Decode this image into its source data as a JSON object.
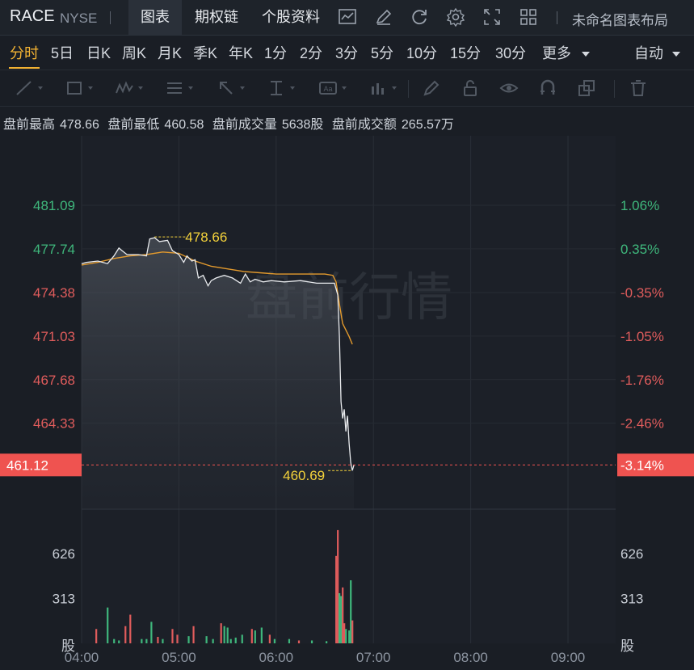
{
  "header": {
    "symbol": "RACE",
    "exchange": "NYSE",
    "tabs": [
      {
        "label": "图表",
        "active": true
      },
      {
        "label": "期权链",
        "active": false
      },
      {
        "label": "个股资料",
        "active": false
      }
    ],
    "layout_label": "未命名图表布局",
    "icons": [
      "indicator-icon",
      "draw-icon",
      "refresh-icon",
      "settings-icon",
      "fullscreen-icon",
      "layout-grid-icon"
    ]
  },
  "periods": {
    "items": [
      "分时",
      "5日",
      "日K",
      "周K",
      "月K",
      "季K",
      "年K",
      "1分",
      "2分",
      "3分",
      "5分",
      "10分",
      "15分",
      "30分",
      "更多"
    ],
    "active": "分时",
    "auto_label": "自动"
  },
  "toolbar": {
    "tools": [
      "line-tool-icon",
      "rectangle-tool-icon",
      "wave-tool-icon",
      "fib-tool-icon",
      "arrow-tool-icon",
      "measure-tool-icon",
      "text-tool-icon",
      "bar-pattern-icon",
      "brush-icon",
      "lock-icon",
      "eye-icon",
      "magnet-icon",
      "clone-icon",
      "trash-icon"
    ]
  },
  "stats": {
    "high_label": "盘前最高",
    "high_value": "478.66",
    "low_label": "盘前最低",
    "low_value": "460.58",
    "volume_label": "盘前成交量",
    "volume_value": "5638股",
    "amount_label": "盘前成交额",
    "amount_value": "265.57万"
  },
  "colors": {
    "up": "#3fb77c",
    "down": "#e05c5c",
    "avg_line": "#e39a2d",
    "price_line": "#e8eaed",
    "current_tag": "#ef5350",
    "marker_text": "#f5d33b"
  },
  "chart_data": {
    "type": "line",
    "title": "盘前行情",
    "x_ticks": [
      "04:00",
      "05:00",
      "06:00",
      "07:00",
      "08:00",
      "09:00"
    ],
    "price_ticks": [
      "481.09",
      "477.74",
      "474.38",
      "471.03",
      "467.68",
      "464.33"
    ],
    "pct_ticks": [
      "1.06%",
      "0.35%",
      "-0.35%",
      "-1.05%",
      "-1.76%",
      "-2.46%"
    ],
    "volume_ticks": [
      "626",
      "313"
    ],
    "volume_unit": "股",
    "current_price": "461.12",
    "current_pct": "-3.14%",
    "high_marker": "478.66",
    "low_marker": "460.69",
    "price_range": [
      459.8,
      482.3
    ],
    "volume_range": [
      0,
      780
    ],
    "price_series": [
      [
        "04:00",
        476.6
      ],
      [
        "04:03",
        476.7
      ],
      [
        "04:10",
        476.8
      ],
      [
        "04:16",
        476.6
      ],
      [
        "04:20",
        477.2
      ],
      [
        "04:23",
        477.8
      ],
      [
        "04:25",
        477.6
      ],
      [
        "04:28",
        477.3
      ],
      [
        "04:35",
        477.3
      ],
      [
        "04:40",
        477.2
      ],
      [
        "04:42",
        478.5
      ],
      [
        "04:45",
        478.6
      ],
      [
        "04:48",
        478.3
      ],
      [
        "04:53",
        478.4
      ],
      [
        "04:56",
        477.6
      ],
      [
        "05:00",
        477.3
      ],
      [
        "05:03",
        476.7
      ],
      [
        "05:05",
        477.2
      ],
      [
        "05:08",
        476.8
      ],
      [
        "05:10",
        476.9
      ],
      [
        "05:12",
        475.5
      ],
      [
        "05:15",
        475.7
      ],
      [
        "05:18",
        474.9
      ],
      [
        "05:20",
        475.3
      ],
      [
        "05:23",
        475.5
      ],
      [
        "05:28",
        475.7
      ],
      [
        "05:33",
        475.5
      ],
      [
        "05:38",
        475.1
      ],
      [
        "05:41",
        475.8
      ],
      [
        "05:44",
        475.2
      ],
      [
        "05:47",
        475.4
      ],
      [
        "05:52",
        475.2
      ],
      [
        "05:57",
        475.3
      ],
      [
        "06:05",
        475.2
      ],
      [
        "06:15",
        475.3
      ],
      [
        "06:25",
        475.1
      ],
      [
        "06:32",
        475.1
      ],
      [
        "06:36",
        475.1
      ],
      [
        "06:38",
        474.2
      ],
      [
        "06:39",
        471.0
      ],
      [
        "06:40",
        466.0
      ],
      [
        "06:41",
        464.7
      ],
      [
        "06:42",
        465.4
      ],
      [
        "06:43",
        463.7
      ],
      [
        "06:44",
        464.9
      ],
      [
        "06:45",
        462.8
      ],
      [
        "06:46",
        461.3
      ],
      [
        "06:47",
        460.69
      ],
      [
        "06:48",
        461.12
      ]
    ],
    "avg_series": [
      [
        "04:00",
        476.5
      ],
      [
        "04:10",
        476.7
      ],
      [
        "04:20",
        477.0
      ],
      [
        "04:30",
        477.2
      ],
      [
        "04:40",
        477.3
      ],
      [
        "04:50",
        477.5
      ],
      [
        "05:00",
        477.4
      ],
      [
        "05:10",
        476.8
      ],
      [
        "05:20",
        476.4
      ],
      [
        "05:30",
        476.2
      ],
      [
        "05:40",
        476.0
      ],
      [
        "05:50",
        475.9
      ],
      [
        "06:00",
        475.8
      ],
      [
        "06:10",
        475.8
      ],
      [
        "06:20",
        475.8
      ],
      [
        "06:30",
        475.8
      ],
      [
        "06:35",
        475.7
      ],
      [
        "06:37",
        475.2
      ],
      [
        "06:39",
        473.5
      ],
      [
        "06:41",
        472.0
      ],
      [
        "06:43",
        471.5
      ],
      [
        "06:45",
        471.0
      ],
      [
        "06:47",
        470.4
      ]
    ],
    "volume_series": [
      [
        "04:09",
        100,
        "down"
      ],
      [
        "04:16",
        250,
        "up"
      ],
      [
        "04:20",
        30,
        "up"
      ],
      [
        "04:23",
        20,
        "up"
      ],
      [
        "04:27",
        120,
        "down"
      ],
      [
        "04:30",
        200,
        "down"
      ],
      [
        "04:37",
        30,
        "up"
      ],
      [
        "04:40",
        30,
        "up"
      ],
      [
        "04:43",
        150,
        "up"
      ],
      [
        "04:47",
        45,
        "down"
      ],
      [
        "04:50",
        30,
        "up"
      ],
      [
        "04:56",
        100,
        "down"
      ],
      [
        "04:59",
        60,
        "down"
      ],
      [
        "05:06",
        50,
        "up"
      ],
      [
        "05:09",
        120,
        "down"
      ],
      [
        "05:17",
        50,
        "up"
      ],
      [
        "05:21",
        30,
        "up"
      ],
      [
        "05:26",
        140,
        "down"
      ],
      [
        "05:28",
        120,
        "up"
      ],
      [
        "05:30",
        110,
        "up"
      ],
      [
        "05:32",
        30,
        "up"
      ],
      [
        "05:35",
        40,
        "up"
      ],
      [
        "05:39",
        60,
        "up"
      ],
      [
        "05:45",
        100,
        "down"
      ],
      [
        "05:47",
        90,
        "up"
      ],
      [
        "05:51",
        110,
        "up"
      ],
      [
        "05:56",
        60,
        "down"
      ],
      [
        "05:59",
        30,
        "up"
      ],
      [
        "06:08",
        30,
        "up"
      ],
      [
        "06:14",
        20,
        "down"
      ],
      [
        "06:22",
        20,
        "up"
      ],
      [
        "06:31",
        15,
        "up"
      ],
      [
        "06:37",
        610,
        "down"
      ],
      [
        "06:38",
        790,
        "down"
      ],
      [
        "06:39",
        350,
        "up"
      ],
      [
        "06:40",
        330,
        "up"
      ],
      [
        "06:41",
        390,
        "down"
      ],
      [
        "06:42",
        140,
        "down"
      ],
      [
        "06:43",
        100,
        "up"
      ],
      [
        "06:45",
        90,
        "up"
      ],
      [
        "06:46",
        440,
        "up"
      ],
      [
        "06:47",
        160,
        "down"
      ]
    ]
  }
}
